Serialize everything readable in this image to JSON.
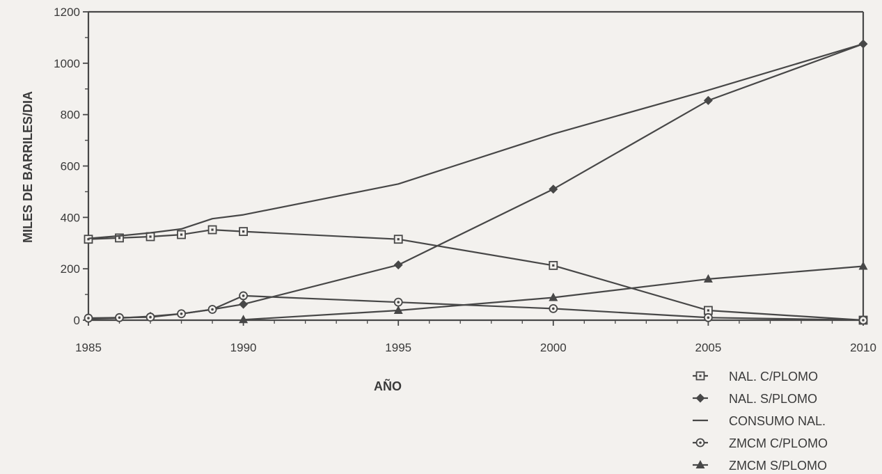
{
  "chart_data": {
    "type": "line",
    "title": "",
    "xlabel": "AÑO",
    "ylabel": "MILES DE BARRILES/DIA",
    "xlim": [
      1985,
      2010
    ],
    "ylim": [
      0,
      1200
    ],
    "x_ticks": [
      1985,
      1990,
      1995,
      2000,
      2005,
      2010
    ],
    "y_ticks": [
      0,
      200,
      400,
      600,
      800,
      1000,
      1200
    ],
    "grid": false,
    "legend_position": "bottom-right",
    "series": [
      {
        "name": "NAL. C/PLOMO",
        "marker": "square-open",
        "x": [
          1985,
          1986,
          1987,
          1988,
          1989,
          1990,
          1995,
          2000,
          2005,
          2010
        ],
        "y": [
          315,
          320,
          325,
          333,
          352,
          345,
          315,
          213,
          38,
          0
        ]
      },
      {
        "name": "NAL. S/PLOMO",
        "marker": "diamond-filled",
        "x": [
          1985,
          1986,
          1987,
          1988,
          1989,
          1990,
          1995,
          2000,
          2005,
          2010
        ],
        "y": [
          5,
          8,
          15,
          25,
          42,
          62,
          215,
          510,
          855,
          1075
        ]
      },
      {
        "name": "CONSUMO NAL.",
        "marker": "none",
        "x": [
          1985,
          1986,
          1987,
          1988,
          1989,
          1990,
          1995,
          2000,
          2005,
          2010
        ],
        "y": [
          318,
          328,
          340,
          355,
          395,
          410,
          530,
          725,
          895,
          1075
        ]
      },
      {
        "name": "ZMCM C/PLOMO",
        "marker": "circle-dot",
        "x": [
          1985,
          1986,
          1987,
          1988,
          1989,
          1990,
          1995,
          2000,
          2005,
          2010
        ],
        "y": [
          8,
          10,
          12,
          25,
          42,
          95,
          70,
          45,
          10,
          0
        ]
      },
      {
        "name": "ZMCM S/PLOMO",
        "marker": "triangle-filled",
        "x": [
          1990,
          1995,
          2000,
          2005,
          2010
        ],
        "y": [
          2,
          38,
          88,
          160,
          210
        ]
      }
    ]
  }
}
